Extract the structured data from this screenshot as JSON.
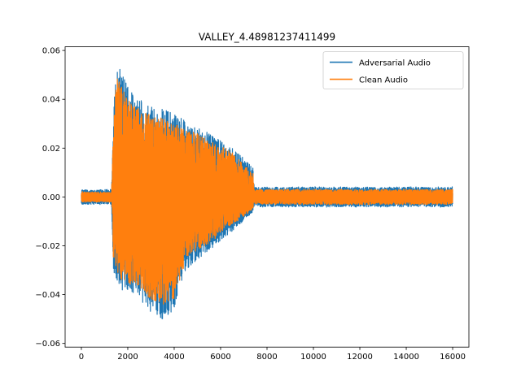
{
  "chart_data": {
    "type": "line",
    "title": "VALLEY_4.48981237411499",
    "xlabel": "",
    "ylabel": "",
    "xlim": [
      -700,
      16700
    ],
    "ylim": [
      -0.0615,
      0.0615
    ],
    "x_ticks": [
      0,
      2000,
      4000,
      6000,
      8000,
      10000,
      12000,
      14000,
      16000
    ],
    "x_tick_labels": [
      "0",
      "2000",
      "4000",
      "6000",
      "8000",
      "10000",
      "12000",
      "14000",
      "16000"
    ],
    "y_ticks": [
      -0.06,
      -0.04,
      -0.02,
      0.0,
      0.02,
      0.04,
      0.06
    ],
    "y_tick_labels": [
      "−0.06",
      "−0.04",
      "−0.02",
      "0.00",
      "0.02",
      "0.04",
      "0.06"
    ],
    "grid": false,
    "legend_position": "top-right",
    "series": [
      {
        "name": "Adversarial Audio",
        "color": "#1f77b4",
        "envelope": {
          "x": [
            0,
            1300,
            1380,
            1500,
            1700,
            2000,
            2500,
            3000,
            3500,
            4000,
            4500,
            5000,
            5500,
            6000,
            6500,
            7000,
            7400,
            7450,
            16000
          ],
          "upper": [
            0.003,
            0.003,
            0.032,
            0.055,
            0.052,
            0.045,
            0.04,
            0.038,
            0.036,
            0.034,
            0.031,
            0.029,
            0.026,
            0.024,
            0.02,
            0.016,
            0.012,
            0.004,
            0.004
          ],
          "lower": [
            -0.003,
            -0.003,
            -0.03,
            -0.034,
            -0.038,
            -0.038,
            -0.042,
            -0.047,
            -0.05,
            -0.046,
            -0.03,
            -0.026,
            -0.022,
            -0.018,
            -0.014,
            -0.01,
            -0.006,
            -0.004,
            -0.004
          ]
        }
      },
      {
        "name": "Clean Audio",
        "color": "#ff7f0e",
        "envelope": {
          "x": [
            0,
            1300,
            1380,
            1500,
            1700,
            2000,
            2500,
            3000,
            3500,
            4000,
            4500,
            5000,
            5500,
            6000,
            6500,
            7000,
            7400,
            7450,
            16000
          ],
          "upper": [
            0.002,
            0.002,
            0.028,
            0.05,
            0.046,
            0.04,
            0.036,
            0.034,
            0.032,
            0.03,
            0.028,
            0.026,
            0.023,
            0.021,
            0.018,
            0.013,
            0.01,
            0.003,
            0.003
          ],
          "lower": [
            -0.002,
            -0.002,
            -0.026,
            -0.03,
            -0.034,
            -0.035,
            -0.038,
            -0.042,
            -0.044,
            -0.042,
            -0.026,
            -0.022,
            -0.019,
            -0.015,
            -0.011,
            -0.008,
            -0.005,
            -0.003,
            -0.003
          ]
        }
      }
    ]
  }
}
